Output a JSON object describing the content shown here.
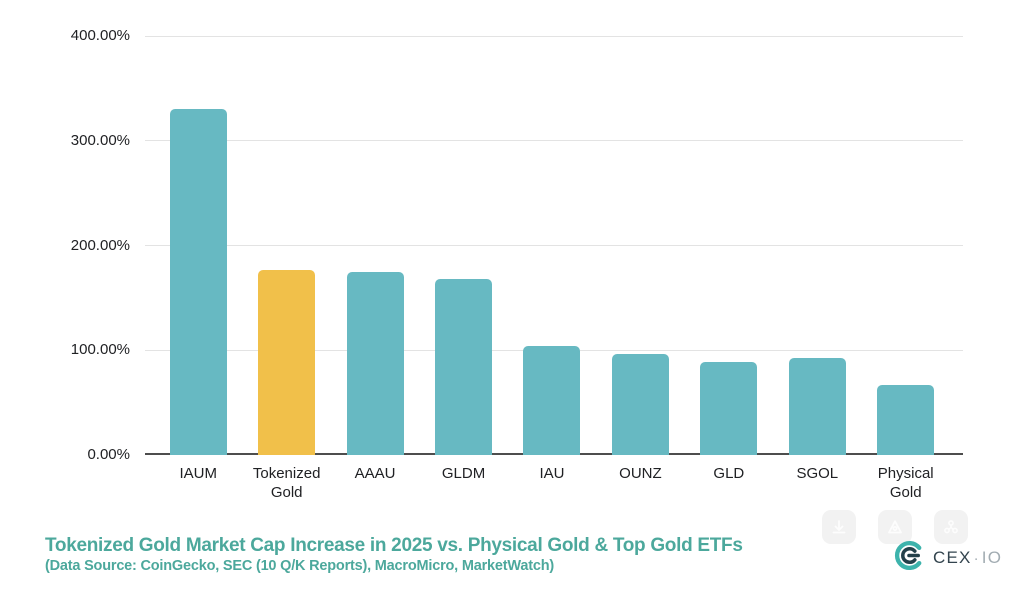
{
  "chart_data": {
    "type": "bar",
    "title": "Tokenized Gold Market Cap Increase in 2025 vs. Physical Gold & Top Gold ETFs",
    "categories": [
      "IAUM",
      "Tokenized\nGold",
      "AAAU",
      "GLDM",
      "IAU",
      "OUNZ",
      "GLD",
      "SGOL",
      "Physical\nGold"
    ],
    "values": [
      330,
      177,
      175,
      168,
      104,
      96,
      89,
      93,
      67
    ],
    "value_unit": "%",
    "ylim": [
      0,
      400
    ],
    "yticks": [
      {
        "label": "400.00%",
        "value": 400
      },
      {
        "label": "300.00%",
        "value": 300
      },
      {
        "label": "200.00%",
        "value": 200
      },
      {
        "label": "100.00%",
        "value": 100
      },
      {
        "label": "0.00%",
        "value": 0
      }
    ],
    "grid": true,
    "legend": false,
    "xlabel": "",
    "ylabel": "",
    "highlight_index": 1,
    "colors": {
      "bar": "#67b9c2",
      "highlight": "#f1c04a",
      "gridline": "#e3e3e3",
      "axis": "#4d4d4d",
      "tick_text": "#202124"
    }
  },
  "footer": {
    "title": "Tokenized Gold Market Cap Increase in 2025 vs. Physical Gold & Top Gold ETFs",
    "subtitle": "(Data Source: CoinGecko, SEC (10 Q/K Reports), MacroMicro, MarketWatch)",
    "accent_color": "#4ca89c"
  },
  "toolbar": {
    "buttons": [
      {
        "icon": "download-icon"
      },
      {
        "icon": "picture-icon"
      },
      {
        "icon": "share-icon"
      }
    ]
  },
  "branding": {
    "name": "CEX.IO",
    "text_primary": "CEX",
    "separator": "·",
    "text_secondary": "IO",
    "icon_teal": "#3db3ac",
    "icon_dark": "#24404a"
  }
}
